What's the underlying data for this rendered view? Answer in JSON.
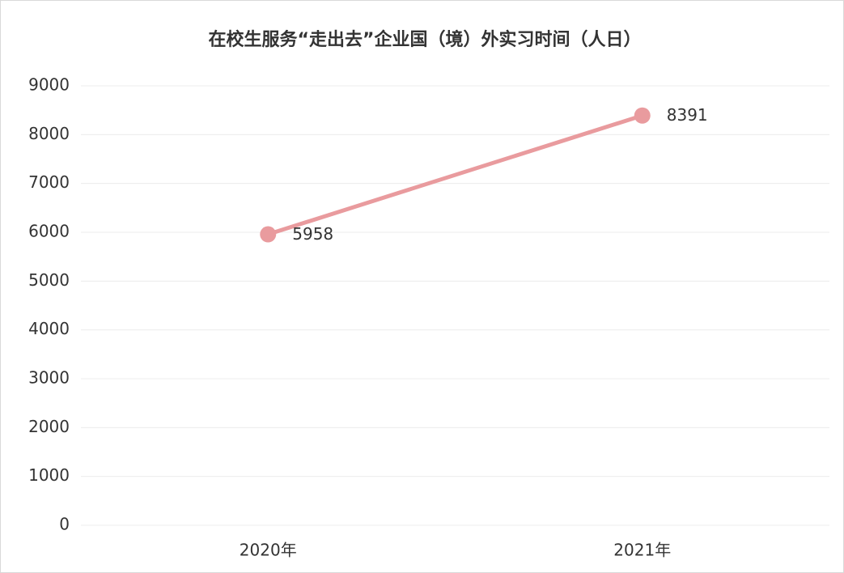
{
  "chart_data": {
    "type": "line",
    "title": "在校生服务“走出去”企业国（境）外实习时间（人日）",
    "categories": [
      "2020年",
      "2021年"
    ],
    "values": [
      5958,
      8391
    ],
    "color": "#e99b9e",
    "ylim": [
      0,
      9000
    ],
    "yticks": [
      0,
      1000,
      2000,
      3000,
      4000,
      5000,
      6000,
      7000,
      8000,
      9000
    ],
    "grid": true
  }
}
